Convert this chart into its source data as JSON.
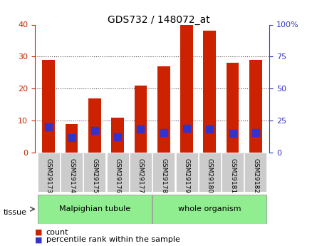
{
  "title": "GDS732 / 148072_at",
  "categories": [
    "GSM29173",
    "GSM29174",
    "GSM29175",
    "GSM29176",
    "GSM29177",
    "GSM29178",
    "GSM29179",
    "GSM29180",
    "GSM29181",
    "GSM29182"
  ],
  "counts": [
    29,
    9,
    17,
    11,
    21,
    27,
    40,
    38,
    28,
    29
  ],
  "percentiles": [
    20,
    11.5,
    17,
    12,
    18.5,
    15.5,
    19,
    18.5,
    15,
    15.5
  ],
  "tissue_groups": [
    {
      "label": "Malpighian tubule",
      "start": 0,
      "end": 5,
      "color": "#90EE90"
    },
    {
      "label": "whole organism",
      "start": 5,
      "end": 10,
      "color": "#90EE90"
    }
  ],
  "left_ylim": [
    0,
    40
  ],
  "right_ylim": [
    0,
    100
  ],
  "left_yticks": [
    0,
    10,
    20,
    30,
    40
  ],
  "right_yticks": [
    0,
    25,
    50,
    75,
    100
  ],
  "right_yticklabels": [
    "0",
    "25",
    "50",
    "75",
    "100%"
  ],
  "bar_color": "#cc2200",
  "dot_color": "#3333cc",
  "grid_color": "#555555",
  "bg_color": "#ffffff",
  "tick_bg": "#cccccc",
  "left_axis_color": "#cc2200",
  "right_axis_color": "#3333cc"
}
